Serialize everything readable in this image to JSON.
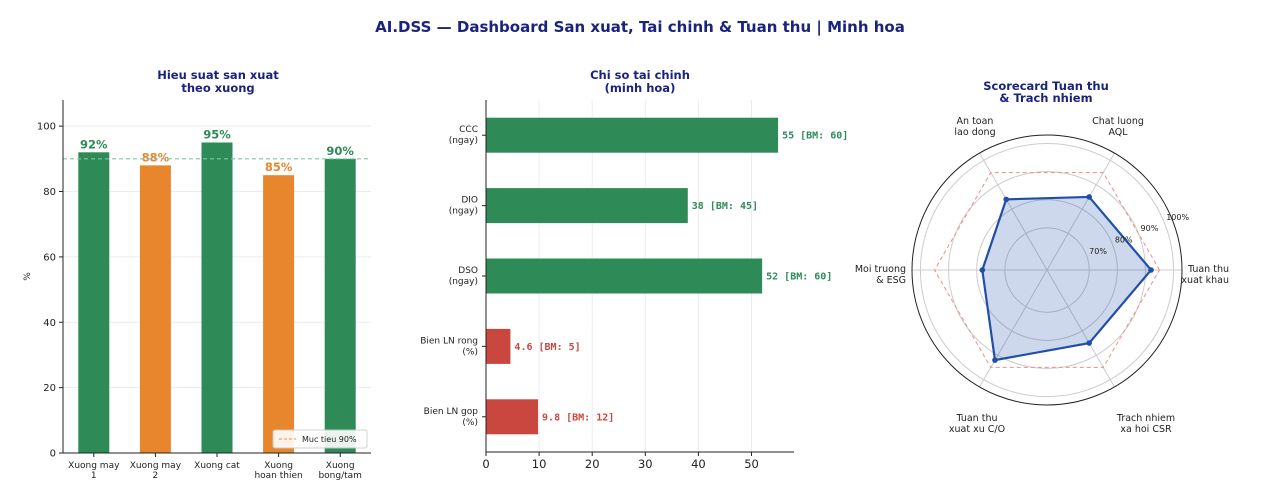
{
  "page_title": "AI.DSS — Dashboard San xuat, Tai chinh & Tuan thu  |  Minh hoa",
  "colors": {
    "green": "#2e8b57",
    "orange": "#e8862e",
    "red": "#c9473f",
    "blue": "#1f4fa8",
    "title": "#1a237e"
  },
  "chart_data": [
    {
      "type": "bar",
      "title": [
        "Hieu suat san xuat",
        "theo xuong"
      ],
      "ylabel": "%",
      "ylim": [
        0,
        108
      ],
      "yticks": [
        0,
        20,
        40,
        60,
        80,
        100
      ],
      "categories": [
        [
          "Xuong may",
          "1"
        ],
        [
          "Xuong may",
          "2"
        ],
        [
          "Xuong cat"
        ],
        [
          "Xuong",
          "hoan thien"
        ],
        [
          "Xuong",
          "bong/tam"
        ]
      ],
      "values": [
        92,
        88,
        95,
        85,
        90
      ],
      "value_labels": [
        "92%",
        "88%",
        "95%",
        "85%",
        "90%"
      ],
      "bar_colors": [
        "green",
        "orange",
        "green",
        "orange",
        "green"
      ],
      "target": 90,
      "legend": {
        "label": "Muc tieu 90%",
        "placement": "lower-right"
      }
    },
    {
      "type": "bar",
      "orientation": "horizontal",
      "title": [
        "Chi so tai chinh",
        "(minh hoa)"
      ],
      "xlim": [
        0,
        58
      ],
      "xticks": [
        0,
        10,
        20,
        30,
        40,
        50
      ],
      "categories": [
        [
          "CCC",
          "(ngay)"
        ],
        [
          "DIO",
          "(ngay)"
        ],
        [
          "DSO",
          "(ngay)"
        ],
        [
          "Bien LN rong",
          "(%)"
        ],
        [
          "Bien LN gop",
          "(%)"
        ]
      ],
      "values": [
        55,
        38,
        52,
        4.6,
        9.8
      ],
      "value_labels": [
        "55  [BM: 60]",
        "38  [BM: 45]",
        "52  [BM: 60]",
        "4.6  [BM: 5]",
        "9.8  [BM: 12]"
      ],
      "bar_colors": [
        "green",
        "green",
        "green",
        "red",
        "red"
      ]
    },
    {
      "type": "radar",
      "title": [
        "Scorecard Tuan thu",
        "& Trach nhiem"
      ],
      "axes": [
        [
          "Tuan thu",
          "xuat khau"
        ],
        [
          "Chat luong",
          "AQL"
        ],
        [
          "An toan",
          "lao dong"
        ],
        [
          "Moi truong",
          "& ESG"
        ],
        [
          "Tuan thu",
          "xuat xu C/O"
        ],
        [
          "Trach nhiem",
          "xa hoi CSR"
        ]
      ],
      "values": [
        92,
        85,
        84,
        78,
        92,
        85
      ],
      "target": 95,
      "rlim": [
        55,
        103
      ],
      "rticks": [
        70,
        80,
        90,
        100
      ],
      "rtick_labels": [
        "70%",
        "80%",
        "90%",
        "100%"
      ]
    }
  ]
}
